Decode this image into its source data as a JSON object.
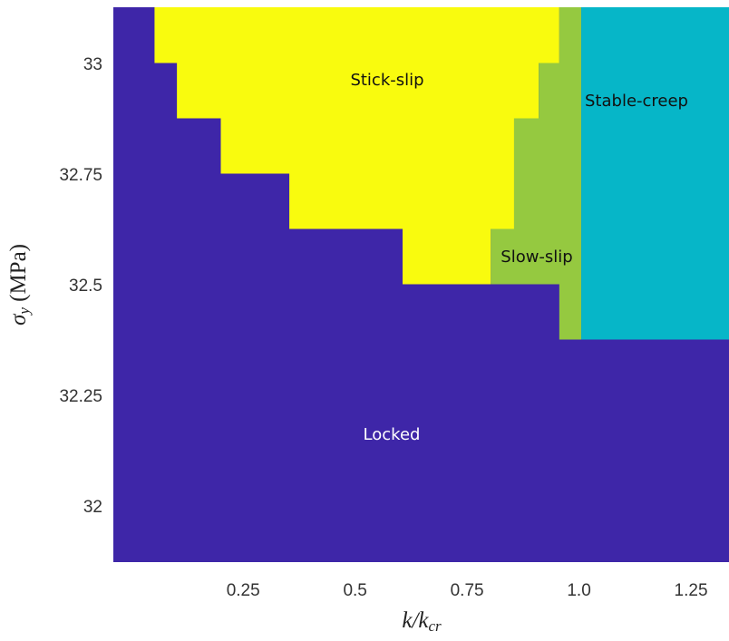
{
  "chart_data": {
    "type": "region",
    "x_label": {
      "main": "k/k",
      "sub": "cr"
    },
    "y_label": {
      "main": "σ",
      "sub": "y",
      "unit": " (MPa)"
    },
    "xlim": [
      -0.04,
      1.335
    ],
    "ylim": [
      31.877,
      33.131
    ],
    "xticks": [
      0.25,
      0.5,
      0.75,
      {
        "value": 1,
        "label": "1.0"
      },
      1.25
    ],
    "yticks": [
      32,
      32.25,
      32.5,
      32.75,
      33
    ],
    "background": {
      "name": "Locked",
      "color": "#3e26a8"
    },
    "regions": [
      {
        "name": "Stick-slip",
        "color": "#f9fb0e",
        "x": [
          0.052,
          0.956,
          0.956,
          0.91,
          0.91,
          0.855,
          0.855,
          0.803,
          0.803,
          0.606,
          0.606,
          0.353,
          0.353,
          0.2,
          0.2,
          0.102,
          0.102,
          0.052
        ],
        "y": [
          33.131,
          33.131,
          33.005,
          33.005,
          32.88,
          32.88,
          32.63,
          32.63,
          32.505,
          32.505,
          32.63,
          32.63,
          32.755,
          32.755,
          32.88,
          32.88,
          33.005,
          33.005
        ]
      },
      {
        "name": "Slow-slip",
        "color": "#95c940",
        "x": [
          0.956,
          1.005,
          1.005,
          0.956,
          0.956,
          0.803,
          0.803,
          0.855,
          0.855,
          0.91,
          0.91,
          0.956
        ],
        "y": [
          33.131,
          33.131,
          32.38,
          32.38,
          32.505,
          32.505,
          32.63,
          32.63,
          32.88,
          32.88,
          33.005,
          33.005
        ]
      },
      {
        "name": "Stable-creep",
        "color": "#06b6c8",
        "x": [
          1.005,
          1.335,
          1.335,
          1.005
        ],
        "y": [
          33.131,
          33.131,
          32.38,
          32.38
        ]
      }
    ]
  }
}
